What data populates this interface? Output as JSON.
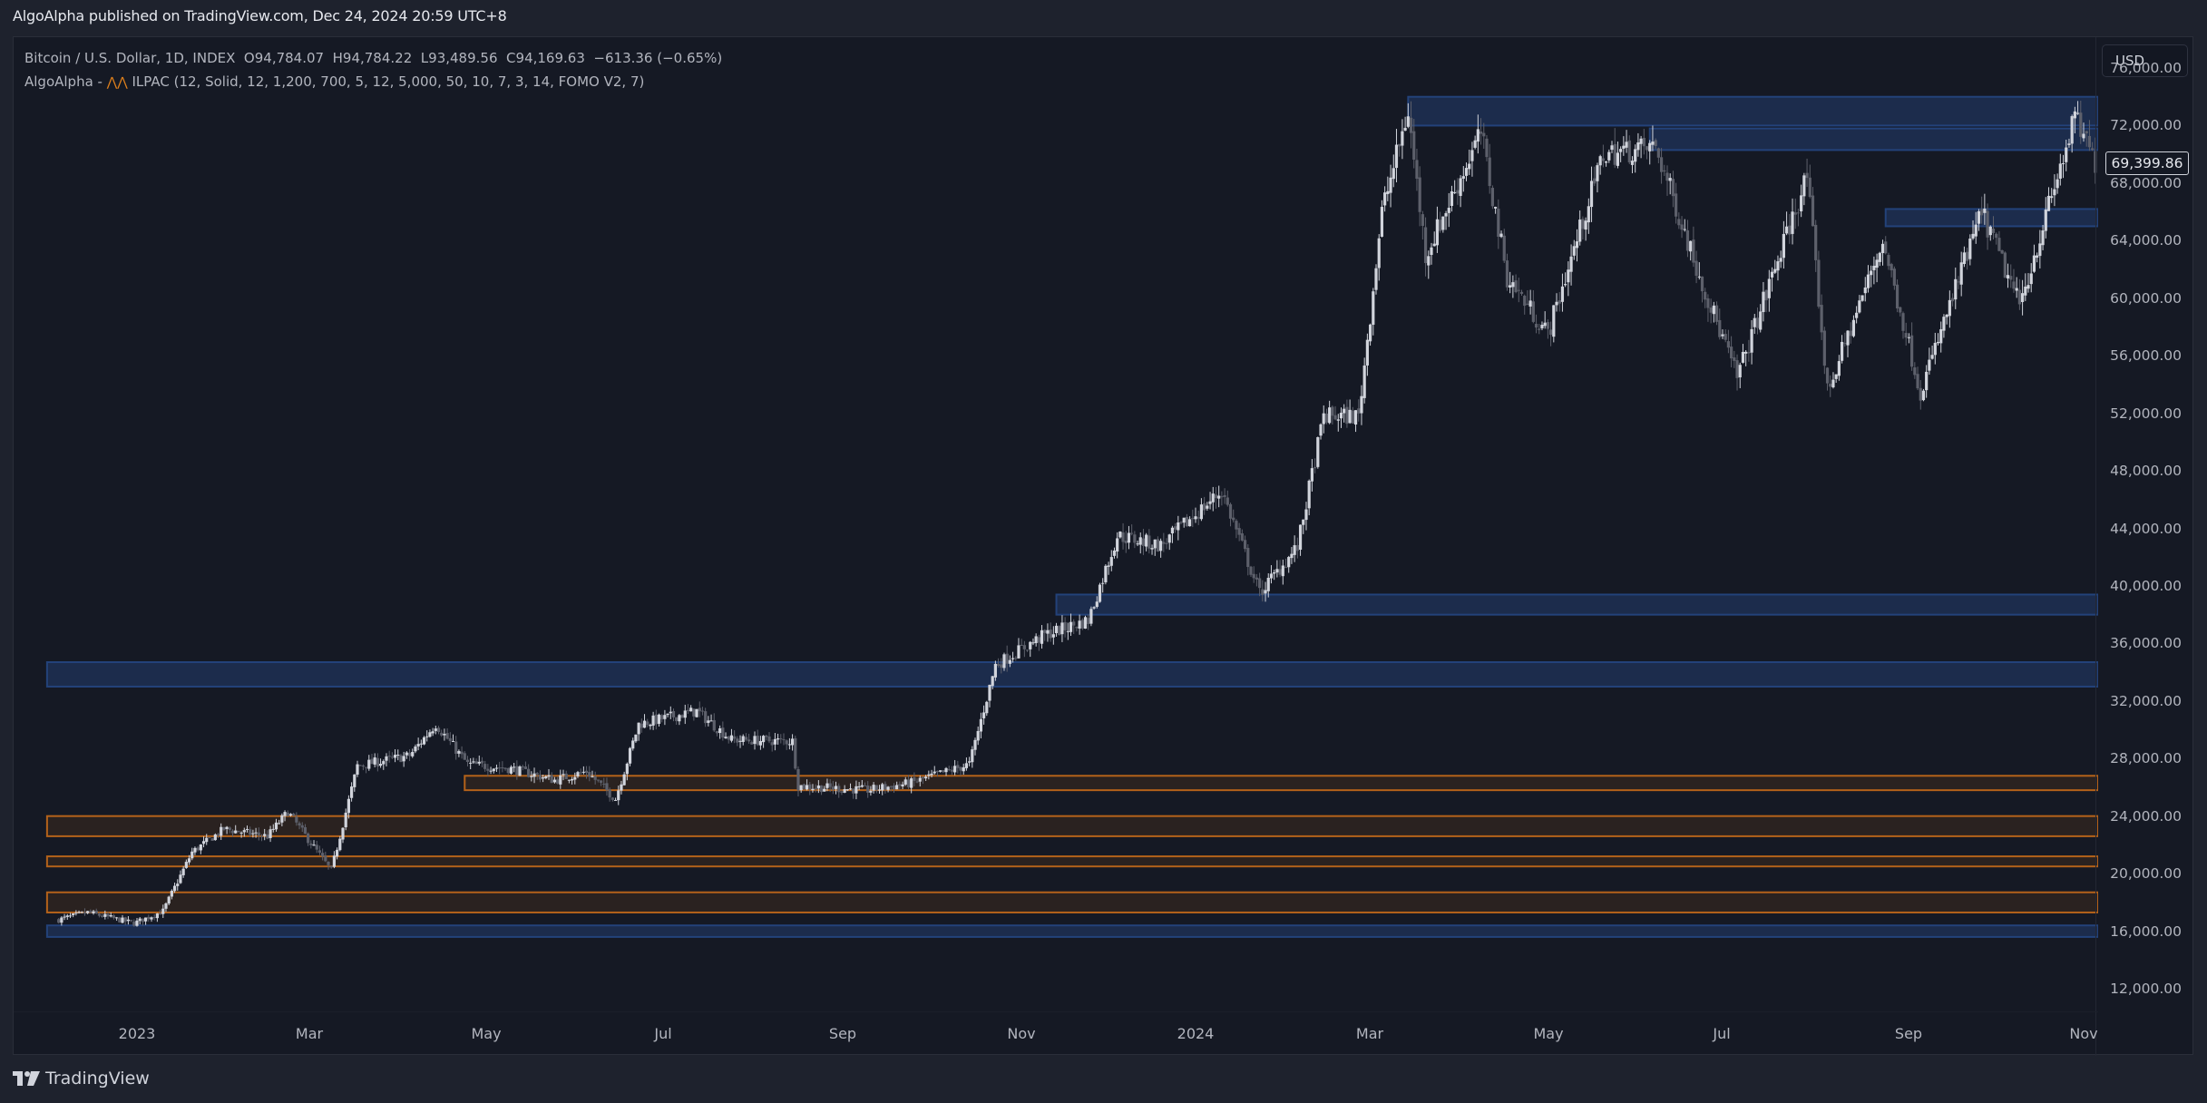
{
  "header": {
    "published": "AlgoAlpha published on TradingView.com, Dec 24, 2024 20:59 UTC+8"
  },
  "legend": {
    "symbol": "Bitcoin / U.S. Dollar, 1D, INDEX",
    "open": "O94,784.07",
    "high": "H94,784.22",
    "low": "L93,489.56",
    "close": "C94,169.63",
    "change": "−613.36 (−0.65%)",
    "indicator_author": "AlgoAlpha -",
    "indicator_icon": "indicator-wave-icon",
    "indicator": "ILPAC (12, Solid, 12, 1,200, 700, 5, 12, 5,000, 50, 10, 7, 3, 14, FOMO V2, 7)"
  },
  "price_axis": {
    "currency": "USD",
    "last_price": "69,399.86",
    "ticks": [
      "76,000.00",
      "72,000.00",
      "68,000.00",
      "64,000.00",
      "60,000.00",
      "56,000.00",
      "52,000.00",
      "48,000.00",
      "44,000.00",
      "40,000.00",
      "36,000.00",
      "32,000.00",
      "28,000.00",
      "24,000.00",
      "20,000.00",
      "16,000.00",
      "12,000.00"
    ]
  },
  "time_axis": {
    "ticks": [
      "2023",
      "Mar",
      "May",
      "Jul",
      "Sep",
      "Nov",
      "2024",
      "Mar",
      "May",
      "Jul",
      "Sep",
      "Nov"
    ]
  },
  "footer": {
    "brand": "TradingView"
  },
  "colors": {
    "up_candle": "#d1d4dc",
    "down_candle": "#5d606b",
    "blue_zone_fill": "#1c2c4c",
    "blue_zone_border": "#23427a",
    "orange_zone_fill": "#2a2220",
    "orange_zone_border": "#b4621a"
  },
  "chart_data": {
    "type": "candlestick",
    "title": "Bitcoin / U.S. Dollar, 1D, INDEX",
    "xlabel": "",
    "ylabel": "USD",
    "ylim": [
      10000,
      78000
    ],
    "x_range": [
      "2022-12",
      "2024-11"
    ],
    "grid": false,
    "last_price": 69399.86,
    "ohlc_header": {
      "open": 94784.07,
      "high": 94784.22,
      "low": 93489.56,
      "close": 94169.63,
      "change": -613.36,
      "change_pct": -0.65
    },
    "x_ticks": [
      "2023",
      "Mar",
      "May",
      "Jul",
      "Sep",
      "Nov",
      "2024",
      "Mar",
      "May",
      "Jul",
      "Sep",
      "Nov"
    ],
    "y_ticks": [
      76000,
      72000,
      68000,
      64000,
      60000,
      56000,
      52000,
      48000,
      44000,
      40000,
      36000,
      32000,
      28000,
      24000,
      20000,
      16000,
      12000
    ],
    "price_path": [
      {
        "t": "2022-12-05",
        "p": 16800
      },
      {
        "t": "2022-12-15",
        "p": 17300
      },
      {
        "t": "2022-12-31",
        "p": 16550
      },
      {
        "t": "2023-01-10",
        "p": 17400
      },
      {
        "t": "2023-01-20",
        "p": 21500
      },
      {
        "t": "2023-01-31",
        "p": 23100
      },
      {
        "t": "2023-02-15",
        "p": 22600
      },
      {
        "t": "2023-02-22",
        "p": 24300
      },
      {
        "t": "2023-03-09",
        "p": 20200
      },
      {
        "t": "2023-03-18",
        "p": 27500
      },
      {
        "t": "2023-04-05",
        "p": 28200
      },
      {
        "t": "2023-04-14",
        "p": 30400
      },
      {
        "t": "2023-04-25",
        "p": 27600
      },
      {
        "t": "2023-05-10",
        "p": 27300
      },
      {
        "t": "2023-05-25",
        "p": 26500
      },
      {
        "t": "2023-06-05",
        "p": 27100
      },
      {
        "t": "2023-06-15",
        "p": 25200
      },
      {
        "t": "2023-06-23",
        "p": 30400
      },
      {
        "t": "2023-07-13",
        "p": 31300
      },
      {
        "t": "2023-07-25",
        "p": 29300
      },
      {
        "t": "2023-08-15",
        "p": 29200
      },
      {
        "t": "2023-08-17",
        "p": 26100
      },
      {
        "t": "2023-09-10",
        "p": 25800
      },
      {
        "t": "2023-09-25",
        "p": 26300
      },
      {
        "t": "2023-10-15",
        "p": 27600
      },
      {
        "t": "2023-10-24",
        "p": 34500
      },
      {
        "t": "2023-11-10",
        "p": 36600
      },
      {
        "t": "2023-11-25",
        "p": 37600
      },
      {
        "t": "2023-12-05",
        "p": 43500
      },
      {
        "t": "2023-12-20",
        "p": 42800
      },
      {
        "t": "2024-01-10",
        "p": 46600
      },
      {
        "t": "2024-01-23",
        "p": 39500
      },
      {
        "t": "2024-02-05",
        "p": 42700
      },
      {
        "t": "2024-02-14",
        "p": 51800
      },
      {
        "t": "2024-02-26",
        "p": 51800
      },
      {
        "t": "2024-03-05",
        "p": 66000
      },
      {
        "t": "2024-03-14",
        "p": 73000
      },
      {
        "t": "2024-03-20",
        "p": 63000
      },
      {
        "t": "2024-04-08",
        "p": 71500
      },
      {
        "t": "2024-04-17",
        "p": 61500
      },
      {
        "t": "2024-05-01",
        "p": 57500
      },
      {
        "t": "2024-05-20",
        "p": 70000
      },
      {
        "t": "2024-06-07",
        "p": 70500
      },
      {
        "t": "2024-06-24",
        "p": 60500
      },
      {
        "t": "2024-07-05",
        "p": 54500
      },
      {
        "t": "2024-07-29",
        "p": 68500
      },
      {
        "t": "2024-08-05",
        "p": 53500
      },
      {
        "t": "2024-08-24",
        "p": 64000
      },
      {
        "t": "2024-09-06",
        "p": 53500
      },
      {
        "t": "2024-09-27",
        "p": 66000
      },
      {
        "t": "2024-10-10",
        "p": 59500
      },
      {
        "t": "2024-10-29",
        "p": 72500
      },
      {
        "t": "2024-11-05",
        "p": 69399.86
      }
    ],
    "zones": [
      {
        "type": "resistance",
        "color": "blue",
        "start": "2024-03-14",
        "top": 74000,
        "bottom": 72000
      },
      {
        "type": "resistance",
        "color": "blue",
        "start": "2024-06-05",
        "top": 71800,
        "bottom": 70300
      },
      {
        "type": "resistance",
        "color": "blue",
        "start": "2024-08-25",
        "top": 66200,
        "bottom": 65000
      },
      {
        "type": "support",
        "color": "blue",
        "start": "2023-11-14",
        "top": 39400,
        "bottom": 38000
      },
      {
        "type": "support",
        "color": "blue",
        "start": "2022-12-01",
        "top": 34700,
        "bottom": 33000
      },
      {
        "type": "liquidity",
        "color": "orange",
        "start": "2023-04-24",
        "top": 26800,
        "bottom": 25800
      },
      {
        "type": "liquidity",
        "color": "orange",
        "start": "2022-12-01",
        "top": 24000,
        "bottom": 22600
      },
      {
        "type": "liquidity",
        "color": "orange",
        "start": "2022-12-01",
        "top": 21200,
        "bottom": 20500
      },
      {
        "type": "liquidity",
        "color": "orange",
        "start": "2022-12-01",
        "top": 18700,
        "bottom": 17300
      },
      {
        "type": "support",
        "color": "blue",
        "start": "2022-12-01",
        "top": 16400,
        "bottom": 15600
      }
    ]
  }
}
